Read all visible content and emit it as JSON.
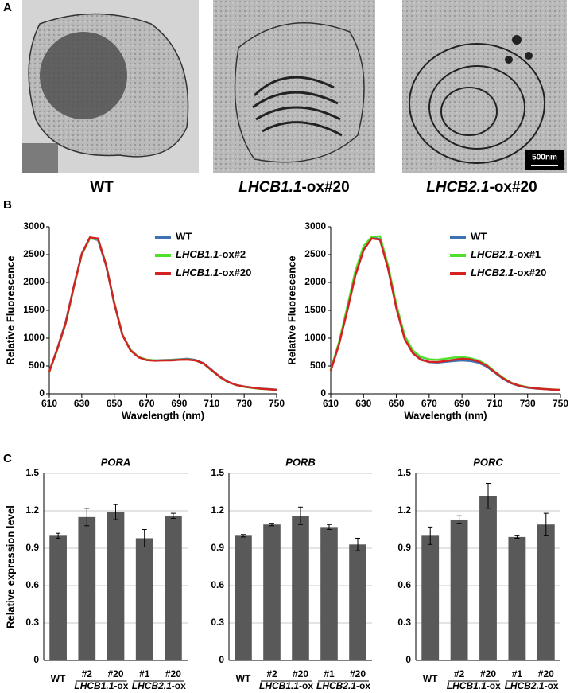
{
  "figure": {
    "panel_labels": [
      "A",
      "B",
      "C"
    ],
    "micrograph_captions": [
      "WT",
      "LHCB1.1-ox#20",
      "LHCB2.1-ox#20"
    ],
    "scale_bar": "500nm"
  },
  "chart_data": [
    {
      "type": "line",
      "x_label": "Wavelength (nm)",
      "y_label": "Relative Fluorescence",
      "x": [
        610,
        615,
        620,
        625,
        630,
        635,
        640,
        645,
        650,
        655,
        660,
        665,
        670,
        675,
        680,
        685,
        690,
        695,
        700,
        705,
        710,
        715,
        720,
        725,
        730,
        735,
        740,
        745,
        750
      ],
      "xlim": [
        610,
        750
      ],
      "xticks": [
        610,
        630,
        650,
        670,
        690,
        710,
        730,
        750
      ],
      "ylim": [
        0,
        3000
      ],
      "yticks": [
        0,
        500,
        1000,
        1500,
        2000,
        2500,
        3000
      ],
      "series": [
        {
          "name": "WT",
          "color": "#3d72b4",
          "values": [
            400,
            820,
            1280,
            1920,
            2520,
            2800,
            2760,
            2300,
            1620,
            1060,
            790,
            660,
            610,
            600,
            605,
            610,
            620,
            630,
            610,
            550,
            430,
            310,
            220,
            160,
            130,
            110,
            95,
            85,
            75
          ]
        },
        {
          "name": "LHCB1.1-ox#2",
          "color": "#4fe02e",
          "values": [
            390,
            800,
            1250,
            1900,
            2500,
            2790,
            2780,
            2320,
            1640,
            1070,
            790,
            660,
            615,
            600,
            600,
            605,
            615,
            620,
            600,
            540,
            420,
            300,
            210,
            160,
            125,
            105,
            90,
            80,
            70
          ]
        },
        {
          "name": "LHCB1.1-ox#20",
          "color": "#d42222",
          "values": [
            400,
            810,
            1260,
            1910,
            2510,
            2810,
            2790,
            2310,
            1630,
            1060,
            780,
            655,
            605,
            595,
            600,
            600,
            610,
            615,
            600,
            545,
            425,
            305,
            215,
            160,
            130,
            110,
            92,
            82,
            72
          ]
        }
      ]
    },
    {
      "type": "line",
      "x_label": "Wavelength (nm)",
      "y_label": "Relative Fluorescence",
      "x": [
        610,
        615,
        620,
        625,
        630,
        635,
        640,
        645,
        650,
        655,
        660,
        665,
        670,
        675,
        680,
        685,
        690,
        695,
        700,
        705,
        710,
        715,
        720,
        725,
        730,
        735,
        740,
        745,
        750
      ],
      "xlim": [
        610,
        750
      ],
      "xticks": [
        610,
        630,
        650,
        670,
        690,
        710,
        730,
        750
      ],
      "ylim": [
        0,
        3000
      ],
      "yticks": [
        0,
        500,
        1000,
        1500,
        2000,
        2500,
        3000
      ],
      "series": [
        {
          "name": "WT",
          "color": "#3d72b4",
          "values": [
            420,
            900,
            1500,
            2150,
            2600,
            2800,
            2780,
            2250,
            1550,
            1000,
            740,
            620,
            570,
            560,
            575,
            590,
            600,
            590,
            560,
            490,
            380,
            270,
            190,
            140,
            110,
            95,
            85,
            75,
            70
          ]
        },
        {
          "name": "LHCB2.1-ox#1",
          "color": "#4fe02e",
          "values": [
            430,
            920,
            1550,
            2200,
            2650,
            2820,
            2830,
            2300,
            1600,
            1050,
            780,
            660,
            620,
            610,
            630,
            650,
            660,
            640,
            600,
            520,
            400,
            290,
            200,
            150,
            120,
            100,
            88,
            78,
            72
          ]
        },
        {
          "name": "LHCB2.1-ox#20",
          "color": "#d42222",
          "values": [
            410,
            880,
            1480,
            2120,
            2580,
            2790,
            2770,
            2240,
            1540,
            990,
            730,
            610,
            575,
            570,
            590,
            610,
            630,
            620,
            580,
            505,
            390,
            280,
            195,
            145,
            115,
            98,
            86,
            76,
            70
          ]
        }
      ]
    },
    {
      "type": "bar",
      "title": "PORA",
      "y_label": "Relative expression level",
      "categories": [
        "WT",
        "#2",
        "#20",
        "#1",
        "#20"
      ],
      "groups": [
        "LHCB1.1-ox",
        "LHCB2.1-ox"
      ],
      "values": [
        1.0,
        1.15,
        1.19,
        0.98,
        1.16
      ],
      "errors": [
        0.02,
        0.07,
        0.06,
        0.07,
        0.02
      ],
      "color": "#595959",
      "ylim": [
        0,
        1.5
      ],
      "yticks": [
        0,
        0.3,
        0.6,
        0.9,
        1.2,
        1.5
      ],
      "grid": true
    },
    {
      "type": "bar",
      "title": "PORB",
      "categories": [
        "WT",
        "#2",
        "#20",
        "#1",
        "#20"
      ],
      "groups": [
        "LHCB1.1-ox",
        "LHCB2.1-ox"
      ],
      "values": [
        1.0,
        1.09,
        1.16,
        1.07,
        0.93
      ],
      "errors": [
        0.01,
        0.01,
        0.07,
        0.02,
        0.05
      ],
      "color": "#595959",
      "ylim": [
        0,
        1.5
      ],
      "yticks": [
        0,
        0.3,
        0.6,
        0.9,
        1.2,
        1.5
      ],
      "grid": true
    },
    {
      "type": "bar",
      "title": "PORC",
      "categories": [
        "WT",
        "#2",
        "#20",
        "#1",
        "#20"
      ],
      "groups": [
        "LHCB1.1-ox",
        "LHCB2.1-ox"
      ],
      "values": [
        1.0,
        1.13,
        1.32,
        0.99,
        1.09
      ],
      "errors": [
        0.07,
        0.03,
        0.1,
        0.01,
        0.09
      ],
      "color": "#595959",
      "ylim": [
        0,
        1.5
      ],
      "yticks": [
        0,
        0.3,
        0.6,
        0.9,
        1.2,
        1.5
      ],
      "grid": true
    }
  ]
}
